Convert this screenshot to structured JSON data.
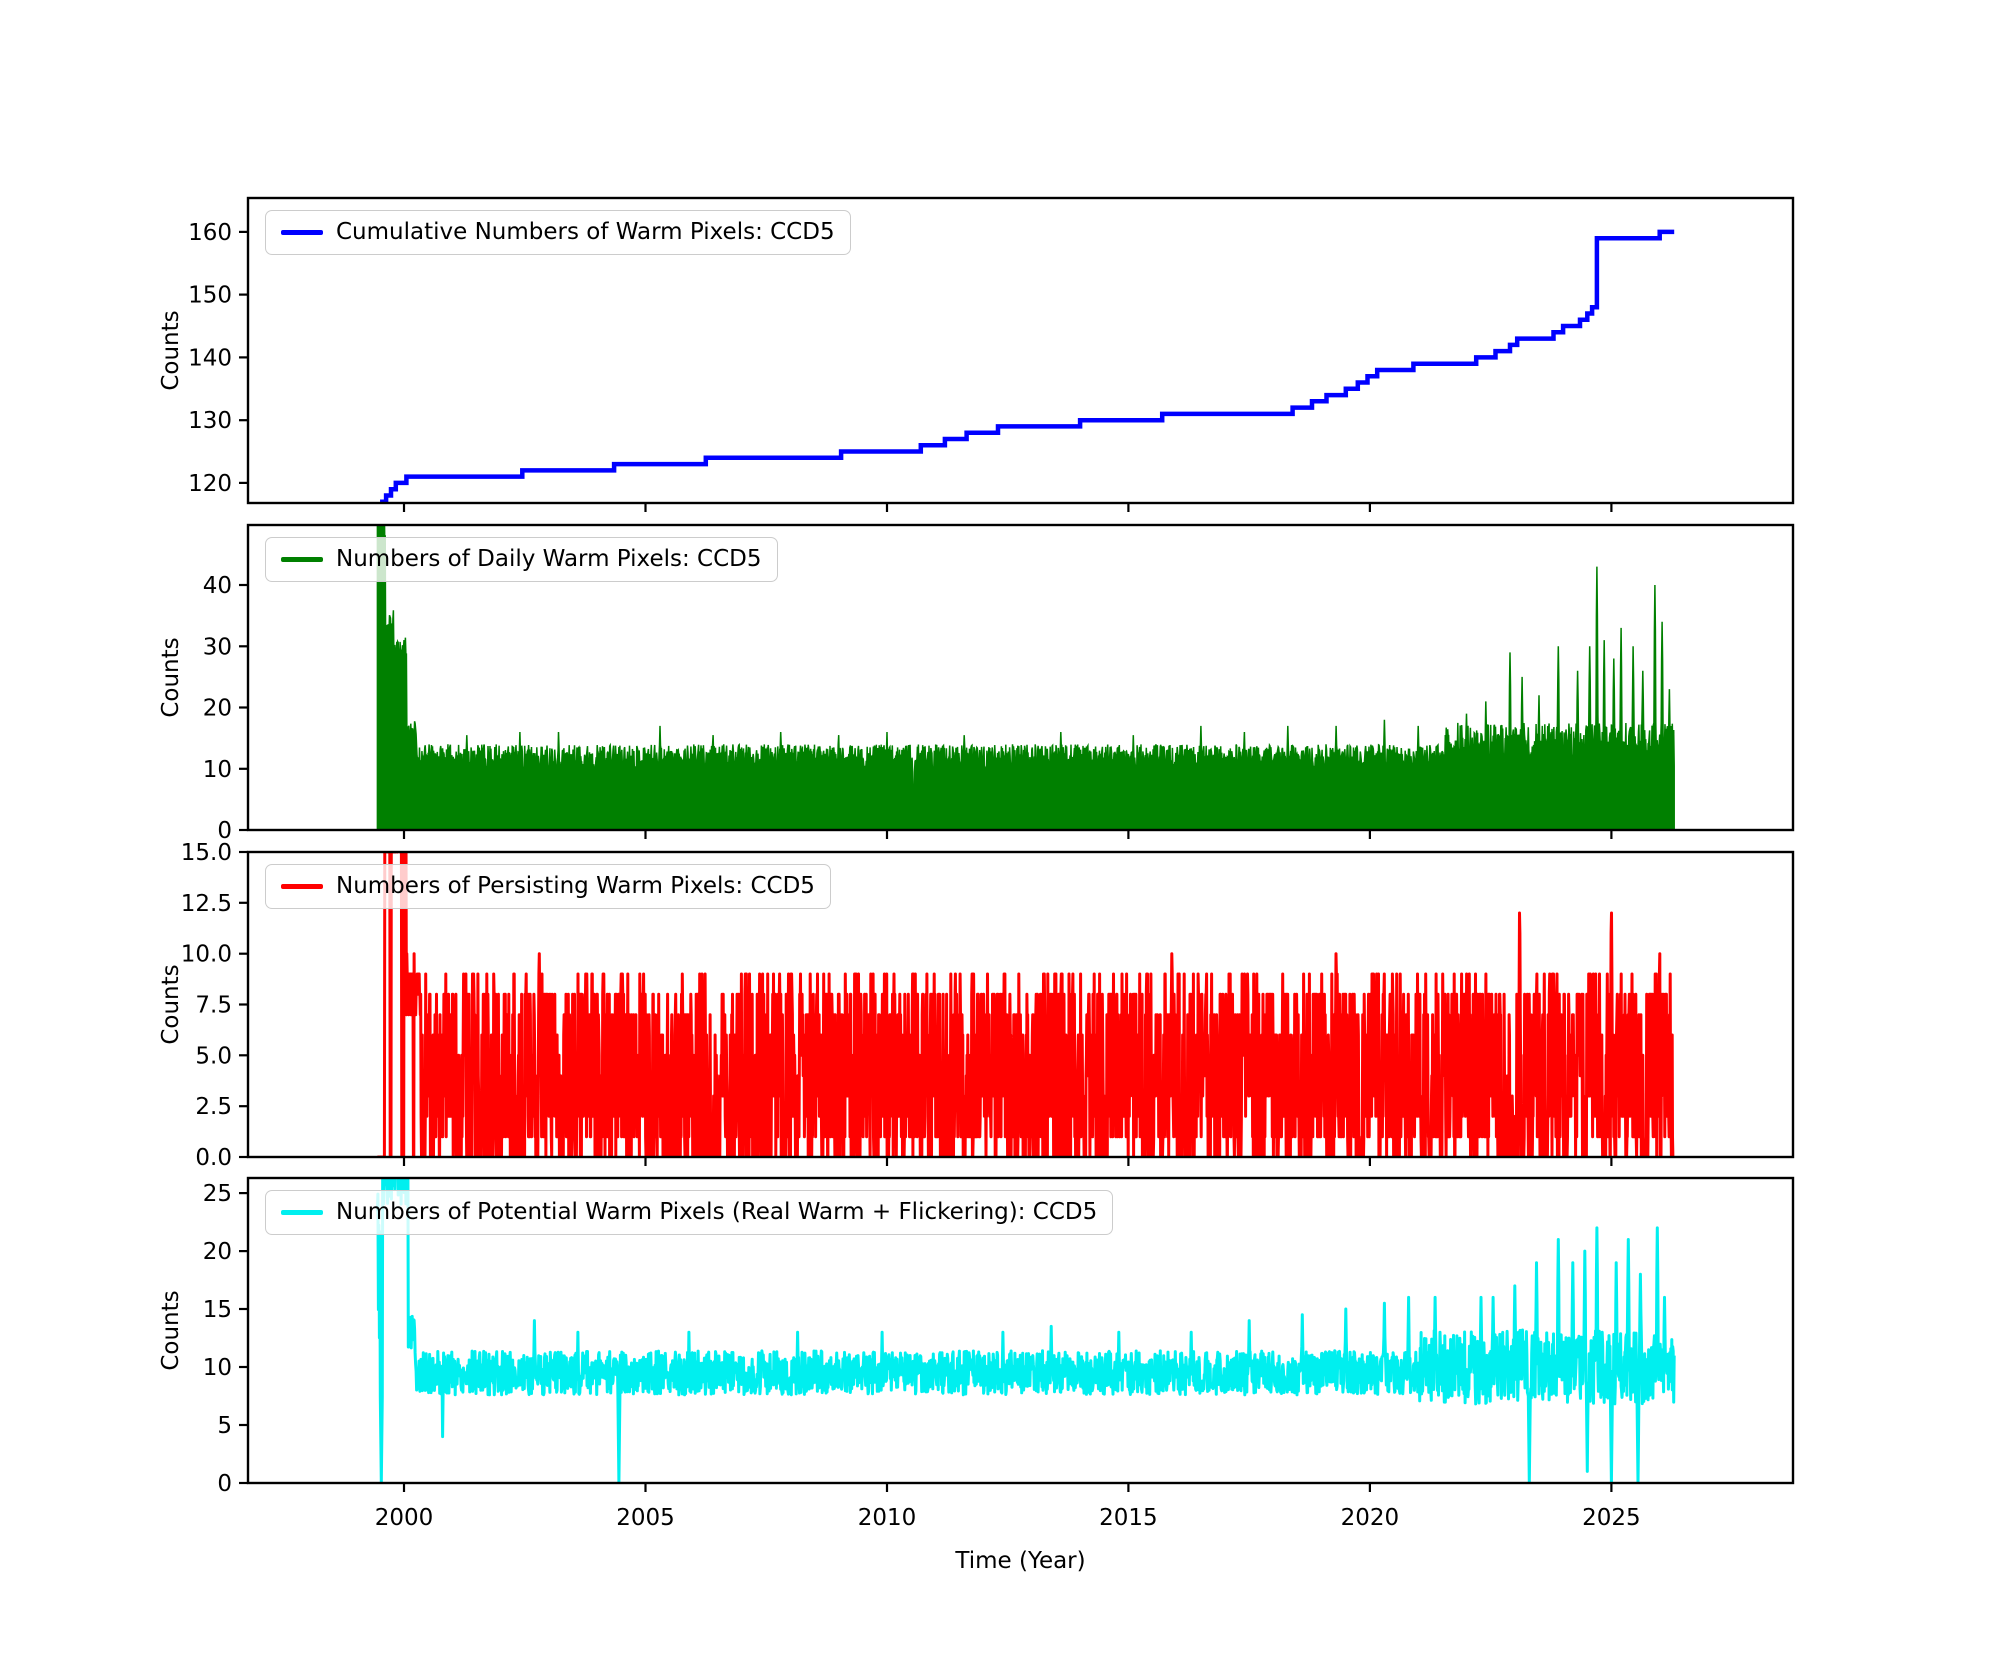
{
  "figure": {
    "xlabel": "Time (Year)",
    "ylabel": "Counts",
    "background": "#ffffff",
    "text_color": "#000000",
    "spine_color": "#000000"
  },
  "xaxis": {
    "label": "Time (Year)",
    "xlim": [
      1996.77,
      2028.76
    ],
    "ticks": [
      2000,
      2005,
      2010,
      2015,
      2020,
      2025
    ],
    "tick_labels": [
      "2000",
      "2005",
      "2010",
      "2015",
      "2020",
      "2025"
    ]
  },
  "chart_data": [
    {
      "id": "cumulative",
      "type": "step",
      "legend": "Cumulative Numbers of Warm Pixels: CCD5",
      "color": "#0000ff",
      "linewidth": 4.5,
      "ylabel": "Counts",
      "ylim": [
        116.8,
        165.4
      ],
      "grid": false,
      "legend_position": "upper-left",
      "yticks": [
        {
          "v": 120,
          "label": "120"
        },
        {
          "v": 130,
          "label": "130"
        },
        {
          "v": 140,
          "label": "140"
        },
        {
          "v": 150,
          "label": "150"
        },
        {
          "v": 160,
          "label": "160"
        }
      ],
      "t_end": 2026.3,
      "steps": [
        [
          1999.55,
          117
        ],
        [
          1999.63,
          118
        ],
        [
          1999.73,
          119
        ],
        [
          1999.83,
          120
        ],
        [
          2000.05,
          121
        ],
        [
          2002.45,
          122
        ],
        [
          2004.35,
          123
        ],
        [
          2006.25,
          124
        ],
        [
          2009.05,
          125
        ],
        [
          2010.7,
          126
        ],
        [
          2011.2,
          127
        ],
        [
          2011.65,
          128
        ],
        [
          2012.3,
          129
        ],
        [
          2014.0,
          130
        ],
        [
          2015.7,
          131
        ],
        [
          2018.4,
          132
        ],
        [
          2018.8,
          133
        ],
        [
          2019.1,
          134
        ],
        [
          2019.5,
          135
        ],
        [
          2019.75,
          136
        ],
        [
          2019.95,
          137
        ],
        [
          2020.15,
          138
        ],
        [
          2020.9,
          139
        ],
        [
          2022.2,
          140
        ],
        [
          2022.6,
          141
        ],
        [
          2022.9,
          142
        ],
        [
          2023.05,
          143
        ],
        [
          2023.8,
          144
        ],
        [
          2024.0,
          145
        ],
        [
          2024.35,
          146
        ],
        [
          2024.5,
          147
        ],
        [
          2024.6,
          148
        ],
        [
          2024.7,
          159
        ],
        [
          2026.0,
          160
        ]
      ]
    },
    {
      "id": "daily",
      "type": "fill",
      "legend": "Numbers of Daily Warm Pixels: CCD5",
      "color": "#008000",
      "linewidth": 3,
      "ylabel": "Counts",
      "ylim": [
        0,
        49.8
      ],
      "grid": false,
      "legend_position": "upper-left",
      "yticks": [
        {
          "v": 0,
          "label": "0"
        },
        {
          "v": 10,
          "label": "10"
        },
        {
          "v": 20,
          "label": "20"
        },
        {
          "v": 30,
          "label": "30"
        },
        {
          "v": 40,
          "label": "40"
        }
      ],
      "baseline_description": "daily counts ~10-15 from 2000-2021, rising noise 12-25 after 2022; startup burst 28-50 during 1999.5-2000.05",
      "gen": {
        "seed": 11,
        "dt": 0.01,
        "t0": 1999.45,
        "t1": 2026.3,
        "spike_w": 0.022,
        "dip_w": 0.01,
        "segments": [
          [
            1999.45,
            1999.62,
            52,
            6
          ],
          [
            1999.62,
            1999.78,
            33,
            3
          ],
          [
            1999.78,
            2000.05,
            29,
            2.5
          ],
          [
            2000.05,
            2000.25,
            16,
            2
          ],
          [
            2000.25,
            2021.5,
            11.8,
            2.2
          ],
          [
            2021.5,
            2026.31,
            14,
            3.5
          ]
        ],
        "spikes": [
          [
            2000.0,
            31
          ],
          [
            2001.3,
            15.5
          ],
          [
            2002.4,
            16
          ],
          [
            2003.2,
            16
          ],
          [
            2005.3,
            17
          ],
          [
            2006.4,
            15.5
          ],
          [
            2007.8,
            16
          ],
          [
            2009.0,
            15.5
          ],
          [
            2010.0,
            16
          ],
          [
            2011.6,
            15.5
          ],
          [
            2013.6,
            16
          ],
          [
            2015.1,
            15.5
          ],
          [
            2016.5,
            17
          ],
          [
            2017.4,
            16
          ],
          [
            2018.3,
            17
          ],
          [
            2019.3,
            17
          ],
          [
            2020.3,
            18
          ],
          [
            2021.0,
            17
          ],
          [
            2022.0,
            19
          ],
          [
            2022.4,
            21
          ],
          [
            2022.9,
            29
          ],
          [
            2023.15,
            25
          ],
          [
            2023.5,
            22
          ],
          [
            2023.9,
            30
          ],
          [
            2024.3,
            26
          ],
          [
            2024.55,
            30
          ],
          [
            2024.7,
            43
          ],
          [
            2024.85,
            31
          ],
          [
            2025.05,
            28
          ],
          [
            2025.2,
            33
          ],
          [
            2025.45,
            30
          ],
          [
            2025.65,
            26
          ],
          [
            2025.9,
            40
          ],
          [
            2026.05,
            34
          ],
          [
            2026.2,
            23
          ]
        ],
        "dips": [
          [
            2010.55,
            0.5
          ]
        ]
      }
    },
    {
      "id": "persisting",
      "type": "line",
      "legend": "Numbers of Persisting Warm Pixels: CCD5",
      "color": "#ff0000",
      "linewidth": 3,
      "ylabel": "Counts",
      "ylim": [
        0,
        15
      ],
      "grid": false,
      "legend_position": "upper-left",
      "yticks": [
        {
          "v": 0,
          "label": "0.0"
        },
        {
          "v": 2.5,
          "label": "2.5"
        },
        {
          "v": 5,
          "label": "5.0"
        },
        {
          "v": 7.5,
          "label": "7.5"
        },
        {
          "v": 10,
          "label": "10.0"
        },
        {
          "v": 12.5,
          "label": "12.5"
        },
        {
          "v": 15,
          "label": "15.0"
        }
      ],
      "baseline_description": "integer counts oscillating 0-9 daily; saturated band above 15 during 1999.6-2000.05; occasional peaks 10-12",
      "gen": {
        "seed": 23,
        "dt": 0.008,
        "t0": 1999.45,
        "t1": 2026.3,
        "spike_w": 0.02,
        "dip_w": 0.012,
        "quantize": true,
        "zero_runs": 0.045,
        "segments": [
          [
            1999.45,
            1999.6,
            0.12,
            0.05
          ],
          [
            1999.6,
            2000.05,
            15.6,
            0.5
          ],
          [
            2000.05,
            2000.35,
            8.5,
            1.5
          ],
          [
            2000.35,
            2026.31,
            4.5,
            4.5
          ]
        ],
        "spikes": [
          [
            2002.8,
            10
          ],
          [
            2015.9,
            10
          ],
          [
            2019.3,
            9.6
          ],
          [
            2023.1,
            12
          ],
          [
            2025.0,
            12
          ],
          [
            2026.0,
            10
          ]
        ],
        "dips": []
      }
    },
    {
      "id": "potential",
      "type": "line",
      "legend": "Numbers of Potential Warm Pixels (Real Warm + Flickering): CCD5",
      "color": "#00efef",
      "linewidth": 3,
      "ylabel": "Counts",
      "ylim": [
        0,
        26.3
      ],
      "grid": false,
      "legend_position": "upper-left",
      "yticks": [
        {
          "v": 0,
          "label": "0"
        },
        {
          "v": 5,
          "label": "5"
        },
        {
          "v": 10,
          "label": "10"
        },
        {
          "v": 15,
          "label": "15"
        },
        {
          "v": 20,
          "label": "20"
        },
        {
          "v": 25,
          "label": "25"
        }
      ],
      "baseline_description": "counts ~8-12 from 2000-2021 with dips to 0 near 1999.5 and 2004.45; saturated band above 26 during 1999.6-2000.05; larger swings 0-22 after 2021",
      "gen": {
        "seed": 5,
        "dt": 0.01,
        "t0": 1999.45,
        "t1": 2026.3,
        "spike_w": 0.022,
        "dip_w": 0.012,
        "segments": [
          [
            1999.45,
            1999.56,
            20,
            9
          ],
          [
            1999.56,
            2000.08,
            27,
            3
          ],
          [
            2000.08,
            2000.22,
            13,
            1.5
          ],
          [
            2000.22,
            2021.0,
            9.5,
            1.9
          ],
          [
            2021.0,
            2026.31,
            10,
            3.2
          ]
        ],
        "spikes": [
          [
            2002.7,
            14
          ],
          [
            2003.6,
            13
          ],
          [
            2005.9,
            13
          ],
          [
            2008.15,
            13
          ],
          [
            2009.9,
            13
          ],
          [
            2012.4,
            13
          ],
          [
            2013.4,
            13.5
          ],
          [
            2014.8,
            13
          ],
          [
            2016.3,
            13
          ],
          [
            2017.5,
            14
          ],
          [
            2018.6,
            14.5
          ],
          [
            2019.5,
            15
          ],
          [
            2020.3,
            15.5
          ],
          [
            2020.8,
            16
          ],
          [
            2021.35,
            16
          ],
          [
            2022.3,
            16
          ],
          [
            2022.55,
            16
          ],
          [
            2023.0,
            17
          ],
          [
            2023.45,
            19
          ],
          [
            2023.9,
            21
          ],
          [
            2024.2,
            19
          ],
          [
            2024.45,
            20
          ],
          [
            2024.7,
            22
          ],
          [
            2025.1,
            19
          ],
          [
            2025.35,
            21
          ],
          [
            2025.6,
            18
          ],
          [
            2025.95,
            22
          ],
          [
            2026.1,
            16
          ]
        ],
        "dips": [
          [
            1999.53,
            0
          ],
          [
            2000.8,
            4
          ],
          [
            2004.45,
            0
          ],
          [
            2023.3,
            0
          ],
          [
            2024.5,
            1
          ],
          [
            2025.0,
            0
          ],
          [
            2025.55,
            0
          ]
        ]
      }
    }
  ]
}
